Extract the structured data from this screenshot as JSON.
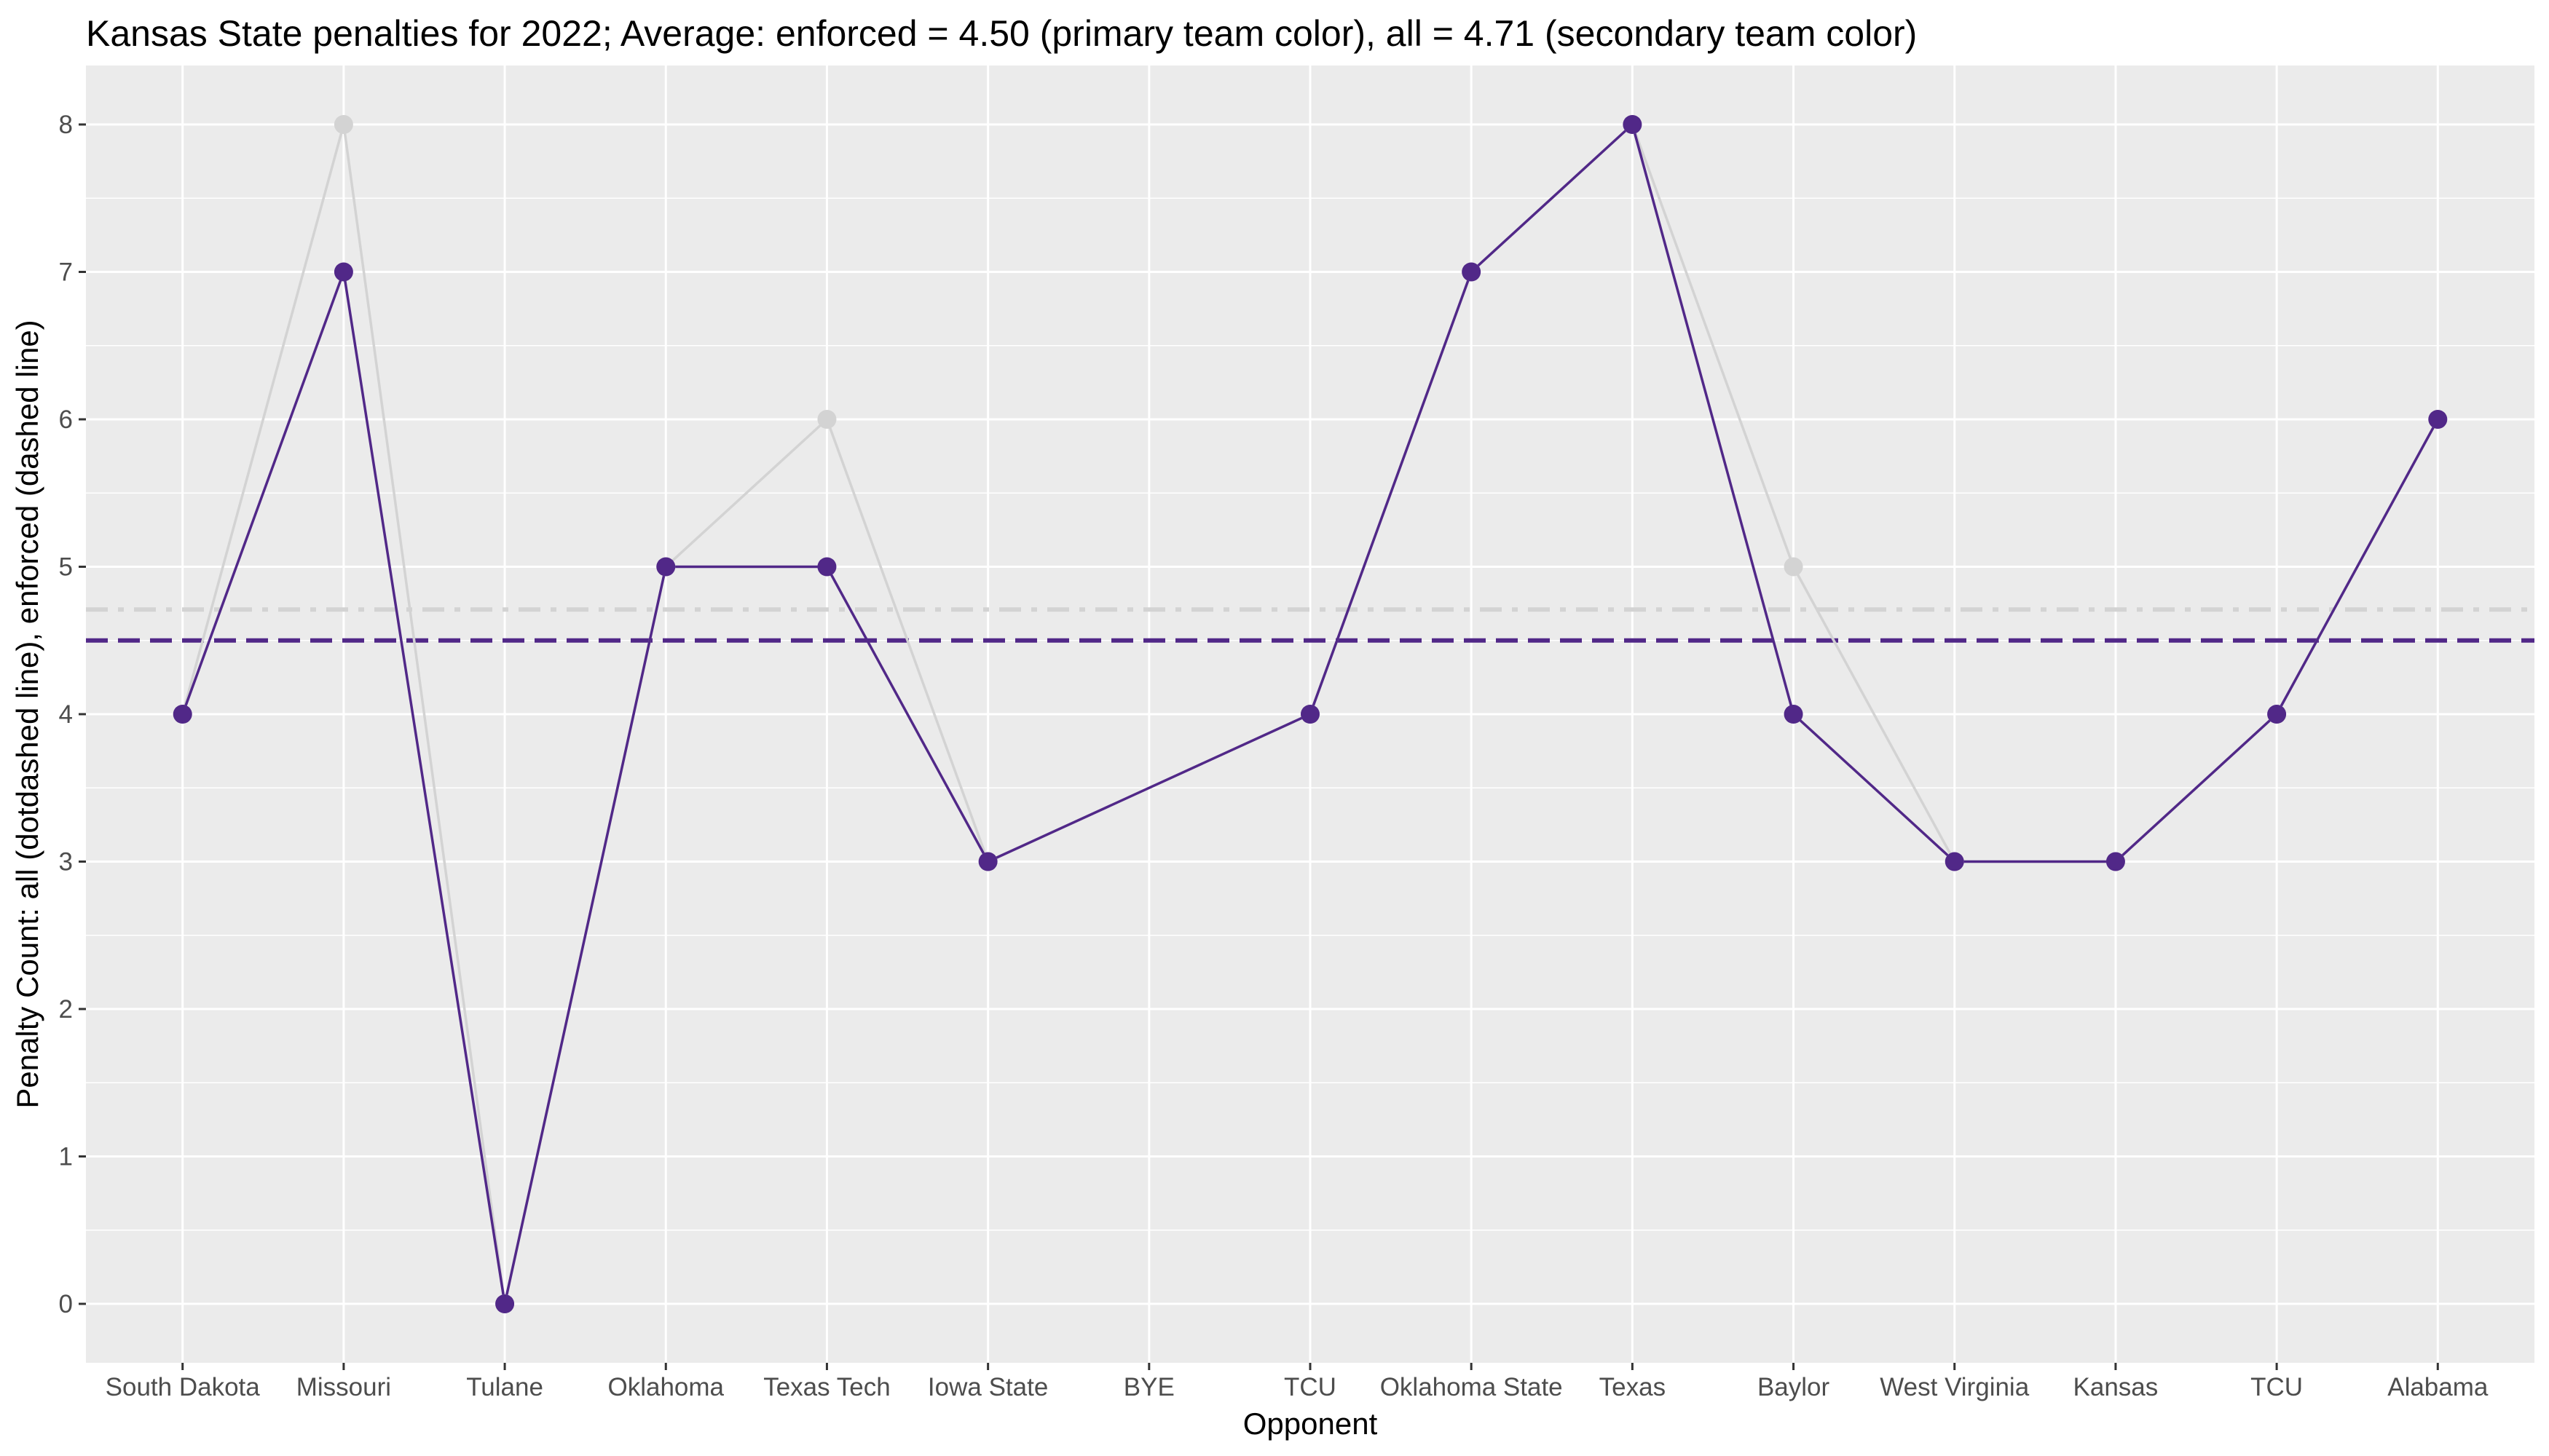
{
  "chart_data": {
    "type": "line",
    "title": "Kansas State penalties for 2022; Average: enforced = 4.50 (primary team color), all = 4.71 (secondary team color)",
    "xlabel": "Opponent",
    "ylabel": "Penalty Count: all (dotdashed line), enforced (dashed line)",
    "categories": [
      "South Dakota",
      "Missouri",
      "Tulane",
      "Oklahoma",
      "Texas Tech",
      "Iowa State",
      "BYE",
      "TCU",
      "Oklahoma State",
      "Texas",
      "Baylor",
      "West Virginia",
      "Kansas",
      "TCU",
      "Alabama"
    ],
    "series": [
      {
        "name": "all",
        "color": "#d3d3d3",
        "values": [
          4,
          8,
          0,
          5,
          6,
          3,
          null,
          4,
          7,
          8,
          5,
          3,
          3,
          4,
          6
        ]
      },
      {
        "name": "enforced",
        "color": "#512888",
        "values": [
          4,
          7,
          0,
          5,
          5,
          3,
          null,
          4,
          7,
          8,
          4,
          3,
          3,
          4,
          6
        ]
      }
    ],
    "reference_lines": [
      {
        "name": "all",
        "value": 4.71,
        "style": "dotdashed",
        "color": "#d3d3d3"
      },
      {
        "name": "enforced",
        "value": 4.5,
        "style": "dashed",
        "color": "#512888"
      }
    ],
    "ylim": [
      -0.4,
      8.4
    ],
    "yticks": [
      0,
      1,
      2,
      3,
      4,
      5,
      6,
      7,
      8
    ],
    "grid": true,
    "background": "#ebebeb",
    "gridline_color": "#ffffff"
  }
}
